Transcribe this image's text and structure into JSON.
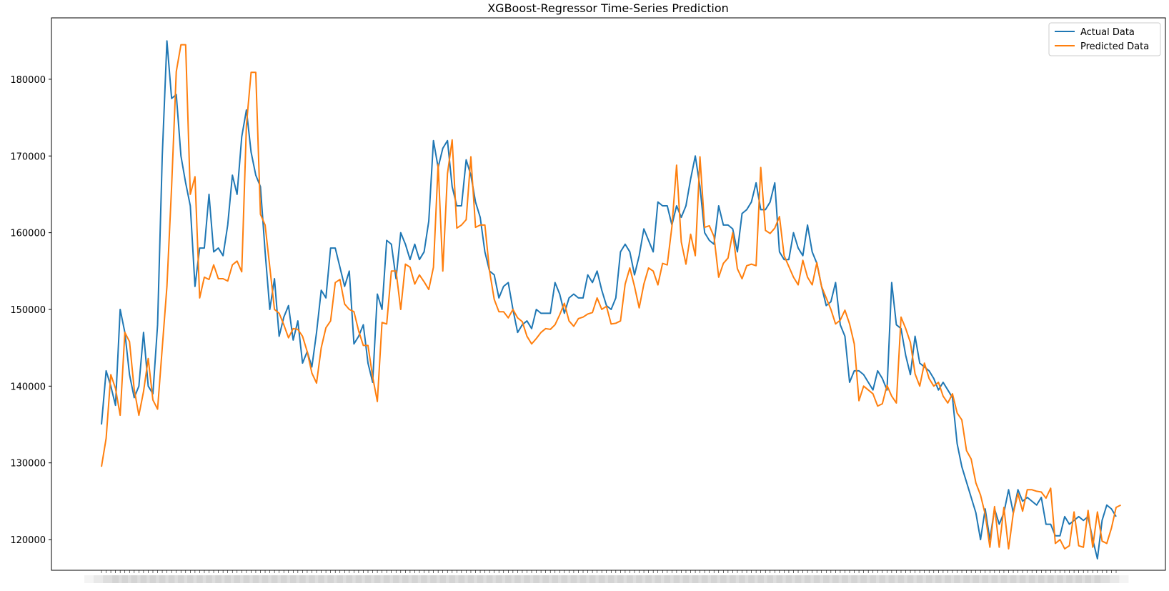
{
  "chart_data": {
    "type": "line",
    "title": "XGBoost-Regressor Time-Series Prediction",
    "xlabel": "",
    "ylabel": "",
    "ylim": [
      116000,
      188000
    ],
    "yticks": [
      120000,
      130000,
      140000,
      150000,
      160000,
      170000,
      180000
    ],
    "ytick_labels": [
      "120000",
      "130000",
      "140000",
      "150000",
      "160000",
      "170000",
      "180000"
    ],
    "x_tick_labels_note": "dense overlapping date labels along x-axis (unreadable)",
    "grid": false,
    "legend_position": "top-right",
    "series": [
      {
        "name": "Actual Data",
        "color": "#1f77b4",
        "values": [
          135000,
          142000,
          140000,
          137500,
          150000,
          147000,
          141500,
          138500,
          140000,
          147000,
          140000,
          139000,
          148000,
          170000,
          185000,
          177500,
          178000,
          170000,
          166500,
          163500,
          153000,
          158000,
          158000,
          165000,
          157500,
          158000,
          157000,
          161000,
          167500,
          165000,
          172500,
          176000,
          170500,
          167500,
          166000,
          157500,
          150000,
          154000,
          146500,
          149000,
          150500,
          146000,
          148500,
          143000,
          144500,
          142500,
          147000,
          152500,
          151500,
          158000,
          158000,
          155500,
          153000,
          155000,
          145500,
          146500,
          148000,
          143000,
          140500,
          152000,
          150000,
          159000,
          158500,
          154000,
          160000,
          158500,
          156500,
          158500,
          156500,
          157500,
          161500,
          172000,
          168500,
          171000,
          172000,
          166000,
          163500,
          163500,
          169500,
          167500,
          164000,
          162000,
          157500,
          155000,
          154500,
          151500,
          153000,
          153500,
          150000,
          147000,
          148000,
          148500,
          147500,
          150000,
          149500,
          149500,
          149500,
          153500,
          152000,
          149500,
          151500,
          152000,
          151500,
          151500,
          154500,
          153500,
          155000,
          152500,
          150500,
          150000,
          151500,
          157500,
          158500,
          157500,
          154500,
          157000,
          160500,
          159000,
          157500,
          164000,
          163500,
          163500,
          161000,
          163500,
          162000,
          163500,
          167000,
          170000,
          166000,
          160000,
          159000,
          158500,
          163500,
          161000,
          161000,
          160500,
          157500,
          162500,
          163000,
          164000,
          166500,
          163000,
          163000,
          164000,
          166500,
          157500,
          156500,
          156500,
          160000,
          158000,
          157000,
          161000,
          157500,
          156000,
          153000,
          150500,
          151000,
          153500,
          148000,
          146500,
          140500,
          142000,
          142000,
          141500,
          140500,
          139500,
          142000,
          141000,
          139500,
          153500,
          148000,
          147500,
          144000,
          141500,
          146500,
          143000,
          142500,
          142000,
          141000,
          139500,
          140500,
          139500,
          138500,
          132500,
          129500,
          127500,
          125500,
          123500,
          120000,
          124000,
          120000,
          124000,
          122000,
          123500,
          126500,
          123500,
          126500,
          125000,
          125500,
          125000,
          124500,
          125500,
          122000,
          122000,
          120500,
          120500,
          123000,
          122000,
          122500,
          123000,
          122500,
          123000,
          120000,
          117500,
          122500,
          124500,
          124000,
          123000
        ]
      },
      {
        "name": "Predicted Data",
        "color": "#ff7f0e",
        "values": [
          129500,
          133200,
          141500,
          139700,
          136200,
          147000,
          145800,
          139600,
          136200,
          139300,
          143600,
          138200,
          137000,
          145000,
          153000,
          166000,
          181000,
          184500,
          184500,
          165000,
          167300,
          151500,
          154200,
          153900,
          155800,
          154000,
          154000,
          153700,
          155800,
          156300,
          154900,
          174000,
          180900,
          180900,
          162400,
          161000,
          155500,
          150000,
          149500,
          148000,
          146300,
          147500,
          147400,
          146500,
          144500,
          141700,
          140400,
          145000,
          147600,
          148500,
          153500,
          153900,
          150700,
          150000,
          149700,
          147200,
          145300,
          145300,
          141200,
          138000,
          148300,
          148100,
          155000,
          155000,
          150000,
          155900,
          155500,
          153300,
          154500,
          153600,
          152600,
          155500,
          168900,
          155000,
          167700,
          172100,
          160600,
          161000,
          161700,
          169900,
          160700,
          161000,
          161000,
          155000,
          151300,
          149700,
          149700,
          148900,
          150000,
          148900,
          148400,
          146500,
          145500,
          146200,
          147000,
          147500,
          147400,
          148000,
          149300,
          150800,
          148500,
          147800,
          148800,
          149000,
          149400,
          149600,
          151500,
          150000,
          150400,
          148100,
          148200,
          148500,
          153300,
          155400,
          153000,
          150200,
          153300,
          155400,
          155000,
          153200,
          156000,
          155800,
          160800,
          168800,
          158800,
          155900,
          159800,
          157000,
          169900,
          160700,
          160900,
          159500,
          154200,
          156000,
          156700,
          160000,
          155300,
          154000,
          155700,
          155900,
          155700,
          168500,
          160300,
          159900,
          160600,
          162100,
          157000,
          155600,
          154200,
          153200,
          156400,
          154200,
          153200,
          156100,
          153000,
          151500,
          150000,
          148100,
          148600,
          149900,
          148100,
          145500,
          138100,
          140000,
          139500,
          139000,
          137400,
          137700,
          140100,
          138700,
          137800,
          149000,
          147500,
          145700,
          141600,
          140000,
          143000,
          141000,
          140000,
          140500,
          138700,
          137800,
          139000,
          136500,
          135600,
          131600,
          130500,
          127400,
          125800,
          123300,
          119000,
          124300,
          119000,
          124200,
          118800,
          123400,
          126000,
          123700,
          126500,
          126500,
          126300,
          126200,
          125400,
          126700,
          119500,
          120000,
          118800,
          119200,
          123600,
          119200,
          119000,
          123800,
          119000,
          123600,
          119800,
          119500,
          121500,
          124200,
          124500
        ]
      }
    ]
  }
}
